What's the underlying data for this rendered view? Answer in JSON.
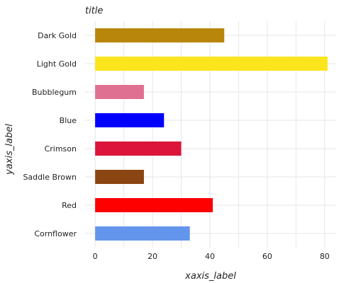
{
  "chart_data": {
    "type": "bar",
    "orientation": "horizontal",
    "title": "title",
    "xlabel": "xaxis_label",
    "ylabel": "yaxis_label",
    "xlim": [
      0,
      80
    ],
    "x_ticks": [
      0,
      20,
      40,
      60,
      80
    ],
    "grid": true,
    "categories": [
      "Cornflower",
      "Red",
      "Saddle Brown",
      "Crimson",
      "Blue",
      "Bubblegum",
      "Light Gold",
      "Dark Gold"
    ],
    "values": [
      33,
      41,
      17,
      30,
      24,
      17,
      81,
      45
    ],
    "colors": [
      "#6495ed",
      "#ff0000",
      "#8b4513",
      "#dc143c",
      "#0000ff",
      "#e07092",
      "#fce51c",
      "#b8860b"
    ]
  }
}
